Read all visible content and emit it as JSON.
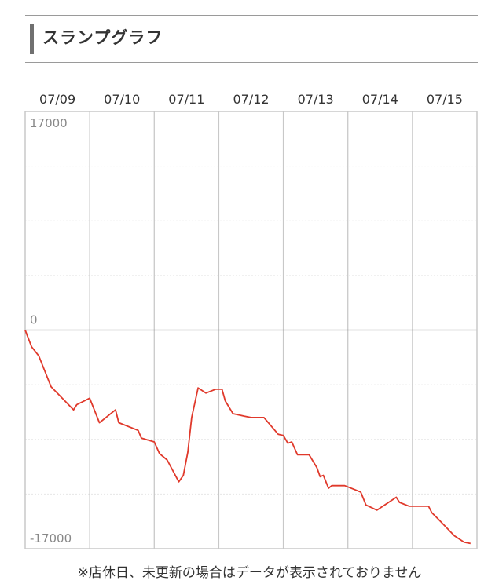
{
  "section": {
    "title": "スランプグラフ"
  },
  "footnote": "※店休日、未更新の場合はデータが表示されておりません",
  "colors": {
    "line": "#e0392b",
    "grid": "#c8c8c8",
    "minor_grid": "#e6e6e6",
    "zero_line": "#888888",
    "label": "#333333",
    "axis_value_label": "#888888"
  },
  "chart_data": {
    "type": "line",
    "title": "スランプグラフ",
    "x_ticks": [
      "07/09",
      "07/10",
      "07/11",
      "07/12",
      "07/13",
      "07/14",
      "07/15"
    ],
    "y_tick_labels": [
      "17000",
      "0",
      "-17000"
    ],
    "ylim": [
      -17000,
      17000
    ],
    "xlim": [
      0,
      7
    ],
    "grid": true,
    "legend": "none",
    "series": [
      {
        "points": [
          [
            0.0,
            0
          ],
          [
            0.1,
            -1300
          ],
          [
            0.21,
            -2000
          ],
          [
            0.4,
            -4400
          ],
          [
            0.75,
            -6200
          ],
          [
            0.8,
            -5800
          ],
          [
            1.0,
            -5300
          ],
          [
            1.15,
            -7200
          ],
          [
            1.4,
            -6200
          ],
          [
            1.45,
            -7200
          ],
          [
            1.75,
            -7800
          ],
          [
            1.8,
            -8400
          ],
          [
            2.0,
            -8700
          ],
          [
            2.08,
            -9600
          ],
          [
            2.2,
            -10100
          ],
          [
            2.38,
            -11800
          ],
          [
            2.45,
            -11300
          ],
          [
            2.52,
            -9500
          ],
          [
            2.58,
            -6800
          ],
          [
            2.68,
            -4500
          ],
          [
            2.8,
            -4900
          ],
          [
            2.95,
            -4600
          ],
          [
            3.05,
            -4600
          ],
          [
            3.1,
            -5500
          ],
          [
            3.22,
            -6500
          ],
          [
            3.4,
            -6700
          ],
          [
            3.5,
            -6800
          ],
          [
            3.7,
            -6800
          ],
          [
            3.92,
            -8100
          ],
          [
            4.0,
            -8200
          ],
          [
            4.07,
            -8800
          ],
          [
            4.13,
            -8700
          ],
          [
            4.22,
            -9700
          ],
          [
            4.4,
            -9700
          ],
          [
            4.52,
            -10700
          ],
          [
            4.57,
            -11400
          ],
          [
            4.62,
            -11300
          ],
          [
            4.7,
            -12300
          ],
          [
            4.75,
            -12100
          ],
          [
            4.95,
            -12100
          ],
          [
            5.1,
            -12400
          ],
          [
            5.2,
            -12600
          ],
          [
            5.28,
            -13600
          ],
          [
            5.45,
            -14000
          ],
          [
            5.75,
            -13000
          ],
          [
            5.8,
            -13400
          ],
          [
            5.95,
            -13700
          ],
          [
            6.25,
            -13700
          ],
          [
            6.3,
            -14200
          ],
          [
            6.4,
            -14700
          ],
          [
            6.65,
            -16000
          ],
          [
            6.8,
            -16500
          ],
          [
            6.9,
            -16600
          ]
        ]
      }
    ]
  }
}
